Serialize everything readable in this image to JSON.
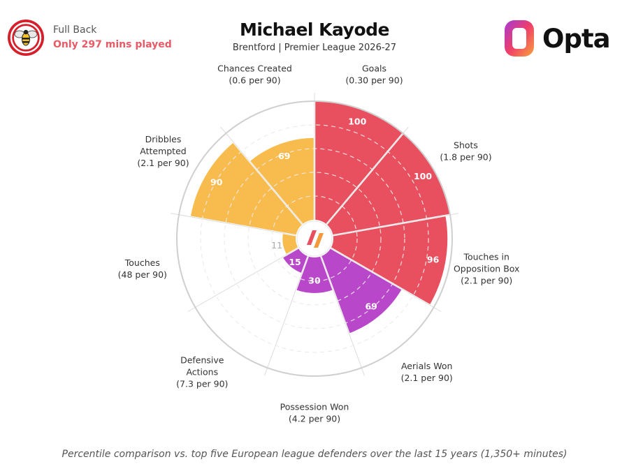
{
  "header": {
    "position": "Full Back",
    "minutes_note": "Only 297 mins played",
    "player_name": "Michael Kayode",
    "subtitle": "Brentford | Premier League 2026-27",
    "brand": "Opta",
    "club_badge_icon": "brentford-bee-crest-icon",
    "brand_logo_icon": "opta-logo-icon"
  },
  "footnote": "Percentile comparison vs. top five European league defenders over the last 15 years (1,350+ minutes)",
  "colors": {
    "attacking": "#e9505f",
    "physical": "#b847c9",
    "possession": "#f8bb4d",
    "empty": "#ffffff",
    "grid": "#e4e4e4",
    "low_value_text": "#aaaaaa"
  },
  "chart_data": {
    "type": "polar-bar",
    "scale": [
      0,
      100
    ],
    "grid_rings": [
      20,
      40,
      60,
      80
    ],
    "categories": [
      {
        "label": [
          "Goals",
          "(0.30 per 90)"
        ],
        "value": 100,
        "group": "attacking"
      },
      {
        "label": [
          "Shots",
          "(1.8 per 90)"
        ],
        "value": 100,
        "group": "attacking"
      },
      {
        "label": [
          "Touches in",
          "Opposition Box",
          "(2.1 per 90)"
        ],
        "value": 96,
        "group": "attacking"
      },
      {
        "label": [
          "Aerials Won",
          "(2.1 per 90)"
        ],
        "value": 69,
        "group": "physical"
      },
      {
        "label": [
          "Possession Won",
          "(4.2 per 90)"
        ],
        "value": 30,
        "group": "physical"
      },
      {
        "label": [
          "Defensive",
          "Actions",
          "(7.3 per 90)"
        ],
        "value": 15,
        "group": "physical"
      },
      {
        "label": [
          "Touches",
          "(48 per 90)"
        ],
        "value": 11,
        "group": "possession"
      },
      {
        "label": [
          "Dribbles",
          "Attempted",
          "(2.1 per 90)"
        ],
        "value": 90,
        "group": "possession"
      },
      {
        "label": [
          "Chances Created",
          "(0.6 per 90)"
        ],
        "value": 69,
        "group": "possession"
      }
    ]
  }
}
